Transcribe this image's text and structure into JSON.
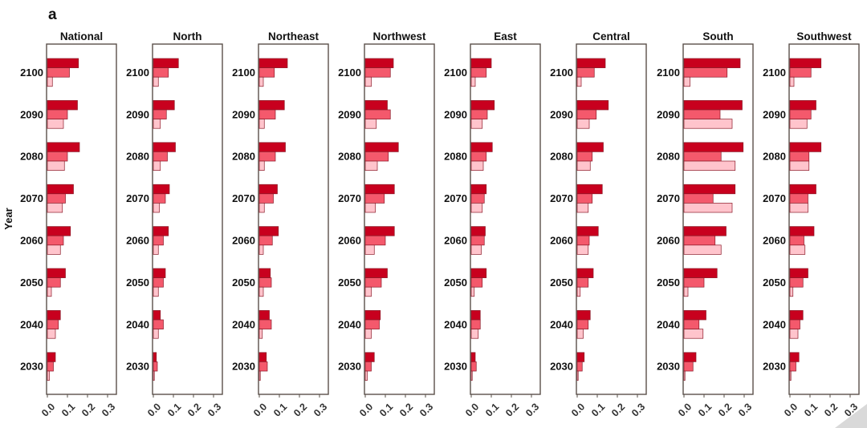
{
  "panel_label": "a",
  "colors": {
    "series_dark": "#c8001e",
    "series_mid": "#f4596c",
    "series_light": "#ffc4cc",
    "bar_stroke": "#8a1a28",
    "frame": "#5a504a"
  },
  "chart_data": {
    "type": "bar",
    "orientation": "horizontal",
    "ylabel": "Year",
    "xlabel": "",
    "xlim": [
      0,
      0.3
    ],
    "x_ticks": [
      "0.0",
      "0.1",
      "0.2",
      "0.3"
    ],
    "years": [
      "2100",
      "2090",
      "2080",
      "2070",
      "2060",
      "2050",
      "2040",
      "2030"
    ],
    "grid": false,
    "legend": "none",
    "facets": [
      {
        "title": "National",
        "series": [
          {
            "values": [
              0.155,
              0.15,
              0.16,
              0.13,
              0.115,
              0.09,
              0.065,
              0.04
            ]
          },
          {
            "values": [
              0.11,
              0.1,
              0.1,
              0.09,
              0.08,
              0.065,
              0.055,
              0.03
            ]
          },
          {
            "values": [
              0.025,
              0.08,
              0.085,
              0.075,
              0.065,
              0.02,
              0.04,
              0.01
            ]
          }
        ]
      },
      {
        "title": "North",
        "series": [
          {
            "values": [
              0.125,
              0.105,
              0.11,
              0.08,
              0.075,
              0.06,
              0.035,
              0.015
            ]
          },
          {
            "values": [
              0.075,
              0.065,
              0.07,
              0.06,
              0.05,
              0.05,
              0.05,
              0.02
            ]
          },
          {
            "values": [
              0.025,
              0.035,
              0.035,
              0.03,
              0.025,
              0.025,
              0.025,
              0.005
            ]
          }
        ]
      },
      {
        "title": "Northeast",
        "series": [
          {
            "values": [
              0.14,
              0.125,
              0.13,
              0.09,
              0.095,
              0.055,
              0.05,
              0.035
            ]
          },
          {
            "values": [
              0.075,
              0.08,
              0.08,
              0.07,
              0.065,
              0.06,
              0.06,
              0.04
            ]
          },
          {
            "values": [
              0.02,
              0.025,
              0.025,
              0.025,
              0.02,
              0.02,
              0.015,
              0.005
            ]
          }
        ]
      },
      {
        "title": "Northwest",
        "series": [
          {
            "values": [
              0.14,
              0.11,
              0.165,
              0.145,
              0.145,
              0.11,
              0.075,
              0.045
            ]
          },
          {
            "values": [
              0.125,
              0.125,
              0.115,
              0.095,
              0.1,
              0.08,
              0.07,
              0.03
            ]
          },
          {
            "values": [
              0.03,
              0.055,
              0.06,
              0.05,
              0.045,
              0.03,
              0.03,
              0.01
            ]
          }
        ]
      },
      {
        "title": "East",
        "series": [
          {
            "values": [
              0.1,
              0.115,
              0.105,
              0.075,
              0.07,
              0.075,
              0.045,
              0.02
            ]
          },
          {
            "values": [
              0.075,
              0.08,
              0.075,
              0.065,
              0.065,
              0.055,
              0.045,
              0.025
            ]
          },
          {
            "values": [
              0.02,
              0.055,
              0.06,
              0.055,
              0.05,
              0.015,
              0.035,
              0.005
            ]
          }
        ]
      },
      {
        "title": "Central",
        "series": [
          {
            "values": [
              0.14,
              0.155,
              0.13,
              0.125,
              0.105,
              0.08,
              0.065,
              0.035
            ]
          },
          {
            "values": [
              0.085,
              0.095,
              0.075,
              0.075,
              0.06,
              0.055,
              0.055,
              0.025
            ]
          },
          {
            "values": [
              0.02,
              0.06,
              0.065,
              0.055,
              0.055,
              0.015,
              0.03,
              0.005
            ]
          }
        ]
      },
      {
        "title": "South",
        "series": [
          {
            "values": [
              0.28,
              0.29,
              0.295,
              0.255,
              0.21,
              0.165,
              0.11,
              0.06
            ]
          },
          {
            "values": [
              0.215,
              0.18,
              0.185,
              0.145,
              0.155,
              0.1,
              0.075,
              0.045
            ]
          },
          {
            "values": [
              0.03,
              0.24,
              0.255,
              0.24,
              0.185,
              0.02,
              0.095,
              0.005
            ]
          }
        ]
      },
      {
        "title": "Southwest",
        "series": [
          {
            "values": [
              0.155,
              0.13,
              0.155,
              0.13,
              0.12,
              0.09,
              0.065,
              0.045
            ]
          },
          {
            "values": [
              0.105,
              0.105,
              0.095,
              0.09,
              0.07,
              0.065,
              0.05,
              0.03
            ]
          },
          {
            "values": [
              0.02,
              0.085,
              0.095,
              0.09,
              0.075,
              0.015,
              0.04,
              0.005
            ]
          }
        ]
      }
    ]
  }
}
